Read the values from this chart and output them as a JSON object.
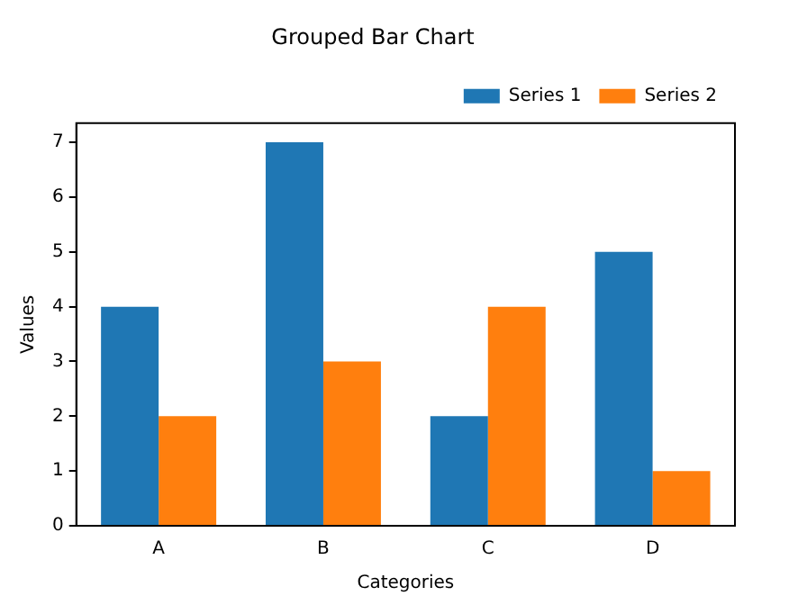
{
  "chart_data": {
    "type": "bar",
    "title": "Grouped Bar Chart",
    "xlabel": "Categories",
    "ylabel": "Values",
    "categories": [
      "A",
      "B",
      "C",
      "D"
    ],
    "series": [
      {
        "name": "Series 1",
        "color": "#1f77b4",
        "values": [
          4,
          7,
          2,
          5
        ]
      },
      {
        "name": "Series 2",
        "color": "#ff7f0e",
        "values": [
          2,
          3,
          4,
          1
        ]
      }
    ],
    "ylim": [
      0,
      7.35
    ],
    "yticks": [
      0,
      1,
      2,
      3,
      4,
      5,
      6,
      7
    ],
    "grid": false,
    "legend": "top right"
  }
}
